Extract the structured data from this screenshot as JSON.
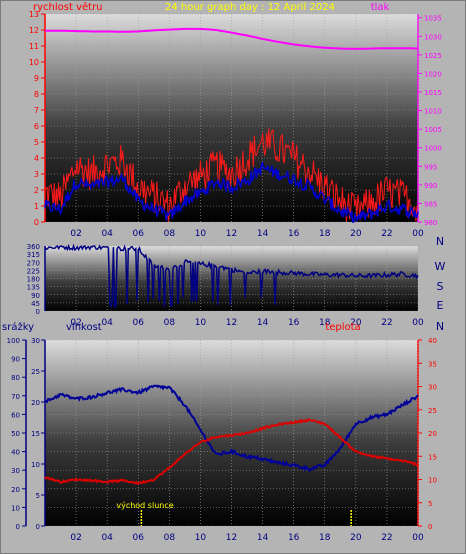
{
  "header": {
    "wind_label": "rychlost větru",
    "title": "24 hour graph day : 12 April 2024",
    "pressure_label": "tlak"
  },
  "lower_header": {
    "rain_label": "srážky",
    "humidity_label": "vlhkost",
    "temperature_label": "teplota"
  },
  "direction_labels": [
    "N",
    "W",
    "S",
    "E",
    "N"
  ],
  "sunrise_label": "východ slunce",
  "colors": {
    "background": "#b4b4b4",
    "plot_dark": "#000000",
    "plot_light": "#dcdcdc",
    "grid": "#a0a0a0",
    "wind_axis": "#ff0000",
    "pressure": "#ff00ff",
    "wind_gust": "#ff1a1a",
    "wind_avg": "#0000cc",
    "direction": "#000080",
    "humidity": "#000099",
    "temperature": "#dd0000",
    "rain_axis": "#000080",
    "humidity_axis": "#000080",
    "temp_axis": "#ff0000",
    "title": "#ffff00",
    "time_ticks": "#000080",
    "sun_marker": "#ffff00"
  },
  "chart_data": [
    {
      "id": "wind-pressure",
      "type": "line",
      "title": "24 hour graph day : 12 April 2024",
      "ylabel": "rychlost větru",
      "ylabel_right": "tlak",
      "x_ticks": [
        "02",
        "04",
        "06",
        "08",
        "10",
        "12",
        "14",
        "16",
        "18",
        "20",
        "22",
        "00"
      ],
      "ylim": [
        0,
        13
      ],
      "y_ticks": [
        0,
        1,
        2,
        3,
        4,
        5,
        6,
        7,
        8,
        9,
        10,
        11,
        12,
        13
      ],
      "ylim_right": [
        980,
        1036
      ],
      "y_ticks_right": [
        980,
        985,
        990,
        995,
        1000,
        1005,
        1010,
        1015,
        1020,
        1025,
        1030,
        1035
      ],
      "x_hours": [
        0,
        1,
        2,
        3,
        4,
        5,
        6,
        7,
        8,
        9,
        10,
        11,
        12,
        13,
        14,
        15,
        16,
        17,
        18,
        19,
        20,
        21,
        22,
        23,
        24
      ],
      "series": [
        {
          "role": "pressure",
          "values": [
            1031.5,
            1031.5,
            1031.4,
            1031.3,
            1031.3,
            1031.2,
            1031.3,
            1031.6,
            1031.8,
            1032.0,
            1032.0,
            1031.7,
            1031.0,
            1030.2,
            1029.3,
            1028.5,
            1027.8,
            1027.3,
            1026.9,
            1026.7,
            1026.6,
            1026.7,
            1026.8,
            1026.8,
            1026.7
          ]
        },
        {
          "role": "gust",
          "values": [
            1.8,
            1.5,
            3.5,
            3.0,
            3.6,
            3.8,
            2.2,
            1.6,
            1.0,
            2.3,
            2.8,
            3.5,
            3.0,
            4.0,
            5.0,
            4.6,
            4.0,
            3.2,
            2.2,
            1.3,
            0.6,
            1.2,
            1.9,
            1.6,
            1.0
          ]
        },
        {
          "role": "average",
          "values": [
            1.0,
            0.8,
            2.5,
            2.2,
            2.5,
            2.7,
            1.3,
            0.8,
            0.3,
            1.3,
            1.8,
            2.5,
            2.2,
            2.6,
            3.4,
            3.0,
            2.7,
            2.2,
            1.4,
            0.7,
            0.2,
            0.5,
            1.0,
            0.8,
            0.5
          ]
        }
      ]
    },
    {
      "id": "wind-direction",
      "type": "line",
      "x_ticks": [
        "02",
        "04",
        "06",
        "08",
        "10",
        "12",
        "14",
        "16",
        "18",
        "20",
        "22",
        "00"
      ],
      "ylim": [
        0,
        360
      ],
      "y_ticks": [
        0,
        45,
        90,
        135,
        180,
        225,
        270,
        315,
        360
      ],
      "x_hours": [
        0,
        1,
        2,
        3,
        4,
        5,
        6,
        7,
        8,
        9,
        10,
        11,
        12,
        13,
        14,
        15,
        16,
        17,
        18,
        19,
        20,
        21,
        22,
        23,
        24
      ],
      "series": [
        {
          "role": "direction",
          "values": [
            350,
            355,
            350,
            355,
            350,
            345,
            345,
            250,
            230,
            270,
            260,
            250,
            230,
            210,
            220,
            215,
            210,
            205,
            200,
            200,
            195,
            195,
            200,
            205,
            195
          ]
        }
      ]
    },
    {
      "id": "humidity-temperature",
      "type": "line",
      "ylabel": "srážky",
      "ylabel_2": "vlhkost",
      "ylabel_right": "teplota",
      "x_ticks": [
        "02",
        "04",
        "06",
        "08",
        "10",
        "12",
        "14",
        "16",
        "18",
        "20",
        "22",
        "00"
      ],
      "rain_ylim": [
        0,
        100
      ],
      "rain_ticks": [
        0,
        10,
        20,
        30,
        40,
        50,
        60,
        70,
        80,
        90,
        100
      ],
      "humidity_ylim": [
        0,
        30
      ],
      "humidity_ticks": [
        0,
        5,
        10,
        15,
        20,
        25,
        30
      ],
      "temp_ylim": [
        0,
        40
      ],
      "temp_ticks": [
        0,
        5,
        10,
        15,
        20,
        25,
        30,
        35,
        40
      ],
      "x_hours": [
        0,
        1,
        2,
        3,
        4,
        5,
        6,
        7,
        8,
        9,
        10,
        11,
        12,
        13,
        14,
        15,
        16,
        17,
        18,
        19,
        20,
        21,
        22,
        23,
        24
      ],
      "series": [
        {
          "role": "humidity",
          "values": [
            20.0,
            21.2,
            20.5,
            20.8,
            21.5,
            22.0,
            21.5,
            22.5,
            22.3,
            19.5,
            15.5,
            11.5,
            12.0,
            11.2,
            10.8,
            10.2,
            9.8,
            9.2,
            9.8,
            12.5,
            16.5,
            17.5,
            18.0,
            19.5,
            21.0
          ]
        },
        {
          "role": "temperature",
          "values": [
            10.5,
            9.5,
            10.0,
            9.8,
            9.5,
            9.8,
            9.2,
            10.0,
            12.5,
            15.5,
            18.0,
            19.2,
            19.5,
            20.0,
            21.0,
            21.8,
            22.3,
            22.8,
            22.0,
            19.0,
            16.0,
            15.0,
            14.5,
            14.0,
            13.2
          ]
        }
      ],
      "markers": [
        {
          "role": "sunrise",
          "hour": 6.2
        },
        {
          "role": "sunset",
          "hour": 19.7
        }
      ]
    }
  ]
}
